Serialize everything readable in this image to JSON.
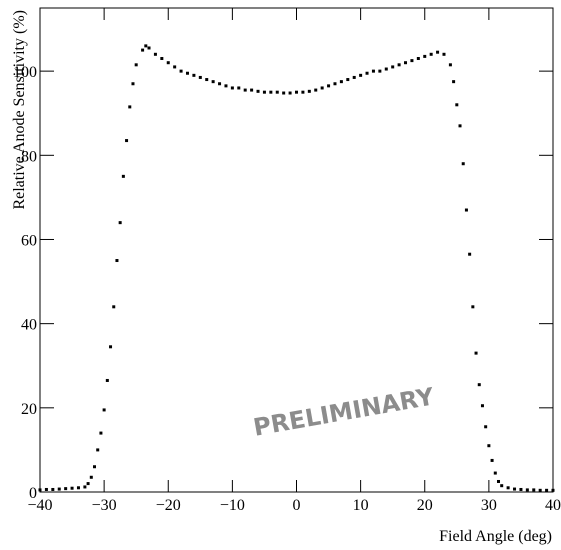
{
  "chart_data": {
    "type": "scatter",
    "x_label": "Field Angle (deg)",
    "y_label": "Relative Anode Sensitivity (%)",
    "annotation": "PRELIMINARY",
    "color": "#000000",
    "xlim": [
      -40,
      40
    ],
    "ylim": [
      0,
      115
    ],
    "xticks": [
      {
        "value": -40,
        "label": "−40"
      },
      {
        "value": -30,
        "label": "−30"
      },
      {
        "value": -20,
        "label": "−20"
      },
      {
        "value": -10,
        "label": "−10"
      },
      0,
      10,
      20,
      30,
      40
    ],
    "yticks": [
      0,
      20,
      40,
      60,
      80,
      100
    ],
    "x": [
      -40,
      -39,
      -38,
      -37,
      -36,
      -35,
      -34,
      -33,
      -32.5,
      -32,
      -31.5,
      -31,
      -30.5,
      -30,
      -29.5,
      -29,
      -28.5,
      -28,
      -27.5,
      -27,
      -26.5,
      -26,
      -25.5,
      -25,
      -24,
      -23.5,
      -23,
      -22,
      -21,
      -20,
      -19,
      -18,
      -17,
      -16,
      -15,
      -14,
      -13,
      -12,
      -11,
      -10,
      -9,
      -8,
      -7,
      -6,
      -5,
      -4,
      -3,
      -2,
      -1,
      0,
      1,
      2,
      3,
      4,
      5,
      6,
      7,
      8,
      9,
      10,
      11,
      12,
      13,
      14,
      15,
      16,
      17,
      18,
      19,
      20,
      21,
      22,
      23,
      24,
      24.5,
      25,
      25.5,
      26,
      26.5,
      27,
      27.5,
      28,
      28.5,
      29,
      29.5,
      30,
      30.5,
      31,
      31.5,
      32,
      33,
      34,
      35,
      36,
      37,
      38,
      39,
      40
    ],
    "values": [
      0.5,
      0.6,
      0.6,
      0.7,
      0.8,
      0.9,
      1.0,
      1.2,
      2,
      3.5,
      6,
      10,
      14,
      19.5,
      26.5,
      34.5,
      44,
      55,
      64,
      75,
      83.5,
      91.5,
      97,
      101.5,
      105,
      106,
      105.5,
      104,
      103,
      102,
      101,
      100,
      99.5,
      99,
      98.5,
      98,
      97.5,
      97,
      96.5,
      96,
      96,
      95.5,
      95.5,
      95.2,
      95,
      95,
      95,
      94.8,
      94.8,
      95,
      95,
      95.2,
      95.5,
      96,
      96.5,
      97,
      97.5,
      98,
      98.5,
      99,
      99.5,
      100,
      100,
      100.5,
      101,
      101.5,
      102,
      102.5,
      103,
      103.5,
      104,
      104.5,
      104,
      101.5,
      97.5,
      92,
      87,
      78,
      67,
      56.5,
      44,
      33,
      25.5,
      20.5,
      15.5,
      11,
      7.5,
      4.5,
      2.5,
      1.5,
      1,
      0.7,
      0.6,
      0.5,
      0.5,
      0.4,
      0.4,
      0.4
    ]
  }
}
